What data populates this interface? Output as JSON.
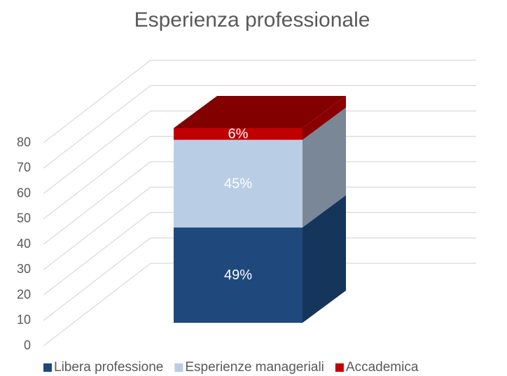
{
  "chart_data": {
    "type": "bar3d_stacked",
    "title": "Esperienza professionale",
    "series": [
      {
        "name": "Libera professione",
        "color": "#1f497d",
        "values": [
          49
        ],
        "value_labels": [
          "49%"
        ]
      },
      {
        "name": "Esperienze manageriali",
        "color": "#b9cde5",
        "values": [
          45
        ],
        "value_labels": [
          "45%"
        ]
      },
      {
        "name": "Accademica",
        "color": "#c00000",
        "values": [
          6
        ],
        "value_labels": [
          "6%"
        ]
      }
    ],
    "ylim": [
      0,
      80
    ],
    "yticks": [
      0,
      10,
      20,
      30,
      40,
      50,
      60,
      70,
      80
    ],
    "grid": true,
    "legend": "bottom"
  }
}
